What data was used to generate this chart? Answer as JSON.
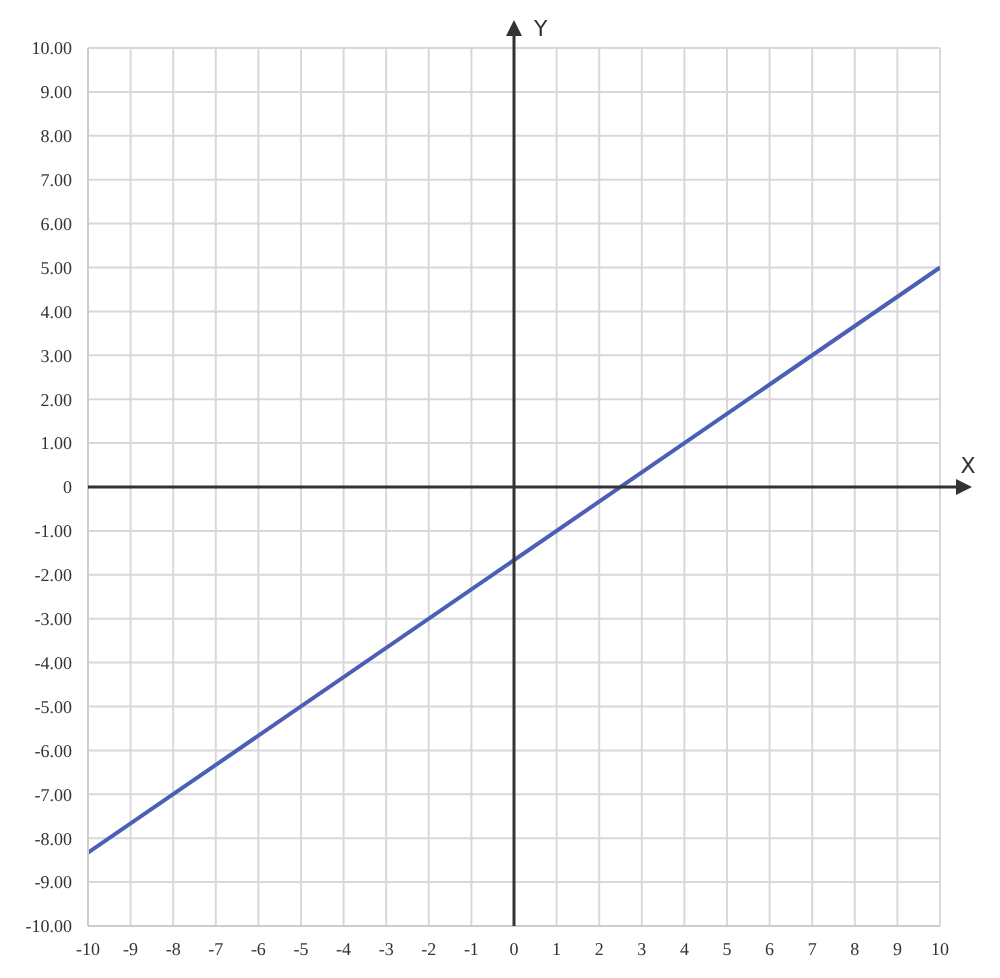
{
  "chart_data": {
    "type": "line",
    "xlabel": "X",
    "ylabel": "Y",
    "x": [
      -10,
      10
    ],
    "series": [
      {
        "color": "#4a5fb5",
        "values": [
          -8.33,
          5
        ]
      }
    ],
    "xlim": [
      -10,
      10
    ],
    "xticks": [
      -10,
      -9,
      -8,
      -7,
      -6,
      -5,
      -4,
      -3,
      -2,
      -1,
      0,
      1,
      2,
      3,
      4,
      5,
      6,
      7,
      8,
      9,
      10
    ],
    "ylim": [
      -10,
      10
    ],
    "yticks": [
      {
        "value": -10,
        "label": "-10.00"
      },
      {
        "value": -9,
        "label": "-9.00"
      },
      {
        "value": -8,
        "label": "-8.00"
      },
      {
        "value": -7,
        "label": "-7.00"
      },
      {
        "value": -6,
        "label": "-6.00"
      },
      {
        "value": -5,
        "label": "-5.00"
      },
      {
        "value": -4,
        "label": "-4.00"
      },
      {
        "value": -3,
        "label": "-3.00"
      },
      {
        "value": -2,
        "label": "-2.00"
      },
      {
        "value": -1,
        "label": "-1.00"
      },
      {
        "value": 0,
        "label": "0"
      },
      {
        "value": 1,
        "label": "1.00"
      },
      {
        "value": 2,
        "label": "2.00"
      },
      {
        "value": 3,
        "label": "3.00"
      },
      {
        "value": 4,
        "label": "4.00"
      },
      {
        "value": 5,
        "label": "5.00"
      },
      {
        "value": 6,
        "label": "6.00"
      },
      {
        "value": 7,
        "label": "7.00"
      },
      {
        "value": 8,
        "label": "8.00"
      },
      {
        "value": 9,
        "label": "9.00"
      },
      {
        "value": 10,
        "label": "10.00"
      }
    ],
    "grid": true,
    "marker": "none",
    "line_style": "solid"
  }
}
